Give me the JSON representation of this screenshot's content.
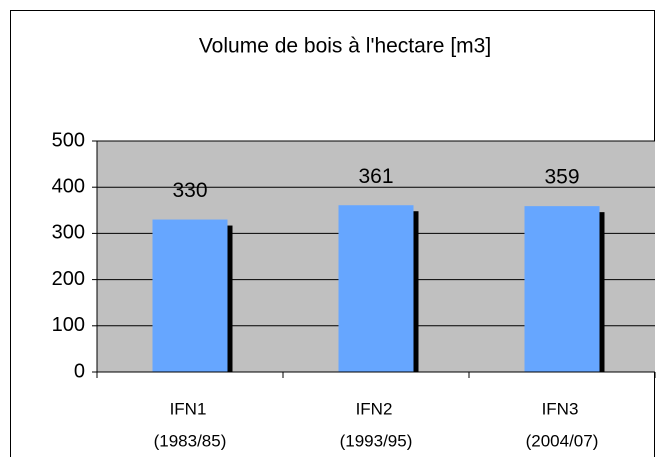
{
  "chart_data": {
    "type": "bar",
    "title": "Volume de bois à l'hectare [m3]",
    "categories": [
      "IFN1",
      "IFN2",
      "IFN3"
    ],
    "category_periods": [
      "(1983/85)",
      "(1993/95)",
      "(2004/07)"
    ],
    "values": [
      330,
      361,
      359
    ],
    "color": "#66a6ff",
    "ylim": [
      0,
      500
    ],
    "yticks": [
      0,
      100,
      200,
      300,
      400,
      500
    ],
    "grid": true
  }
}
